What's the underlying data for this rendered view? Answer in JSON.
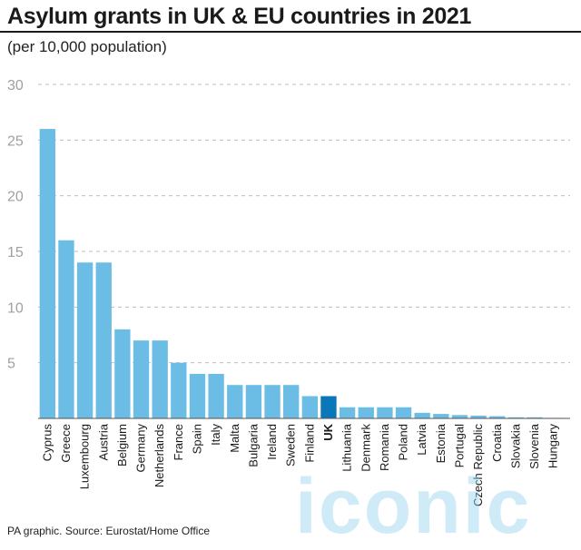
{
  "title": "Asylum grants in UK & EU countries in 2021",
  "subtitle": "(per 10,000 population)",
  "source": "PA graphic. Source: Eurostat/Home Office",
  "watermark": "iconic",
  "colors": {
    "bar": "#6cbde6",
    "highlight": "#0a77b8",
    "grid": "#bdbdbd",
    "tick": "#a0a0a0"
  },
  "chart_data": {
    "type": "bar",
    "categories": [
      "Cyprus",
      "Greece",
      "Luxembourg",
      "Austria",
      "Belgium",
      "Germany",
      "Netherlands",
      "France",
      "Spain",
      "Italy",
      "Malta",
      "Bulgaria",
      "Ireland",
      "Sweden",
      "Finland",
      "UK",
      "Lithuania",
      "Denmark",
      "Romania",
      "Poland",
      "Latvia",
      "Estonia",
      "Portugal",
      "Czech Republic",
      "Croatia",
      "Slovakia",
      "Slovenia",
      "Hungary"
    ],
    "values": [
      26,
      16,
      14,
      14,
      8,
      7,
      7,
      5,
      4,
      4,
      3,
      3,
      3,
      3,
      2,
      2,
      1,
      1,
      1,
      1,
      0.5,
      0.4,
      0.3,
      0.25,
      0.2,
      0.1,
      0.1,
      0.05
    ],
    "highlight": "UK",
    "ylim": [
      0,
      30
    ],
    "yticks": [
      5,
      10,
      15,
      20,
      25,
      30
    ],
    "grid": true
  }
}
